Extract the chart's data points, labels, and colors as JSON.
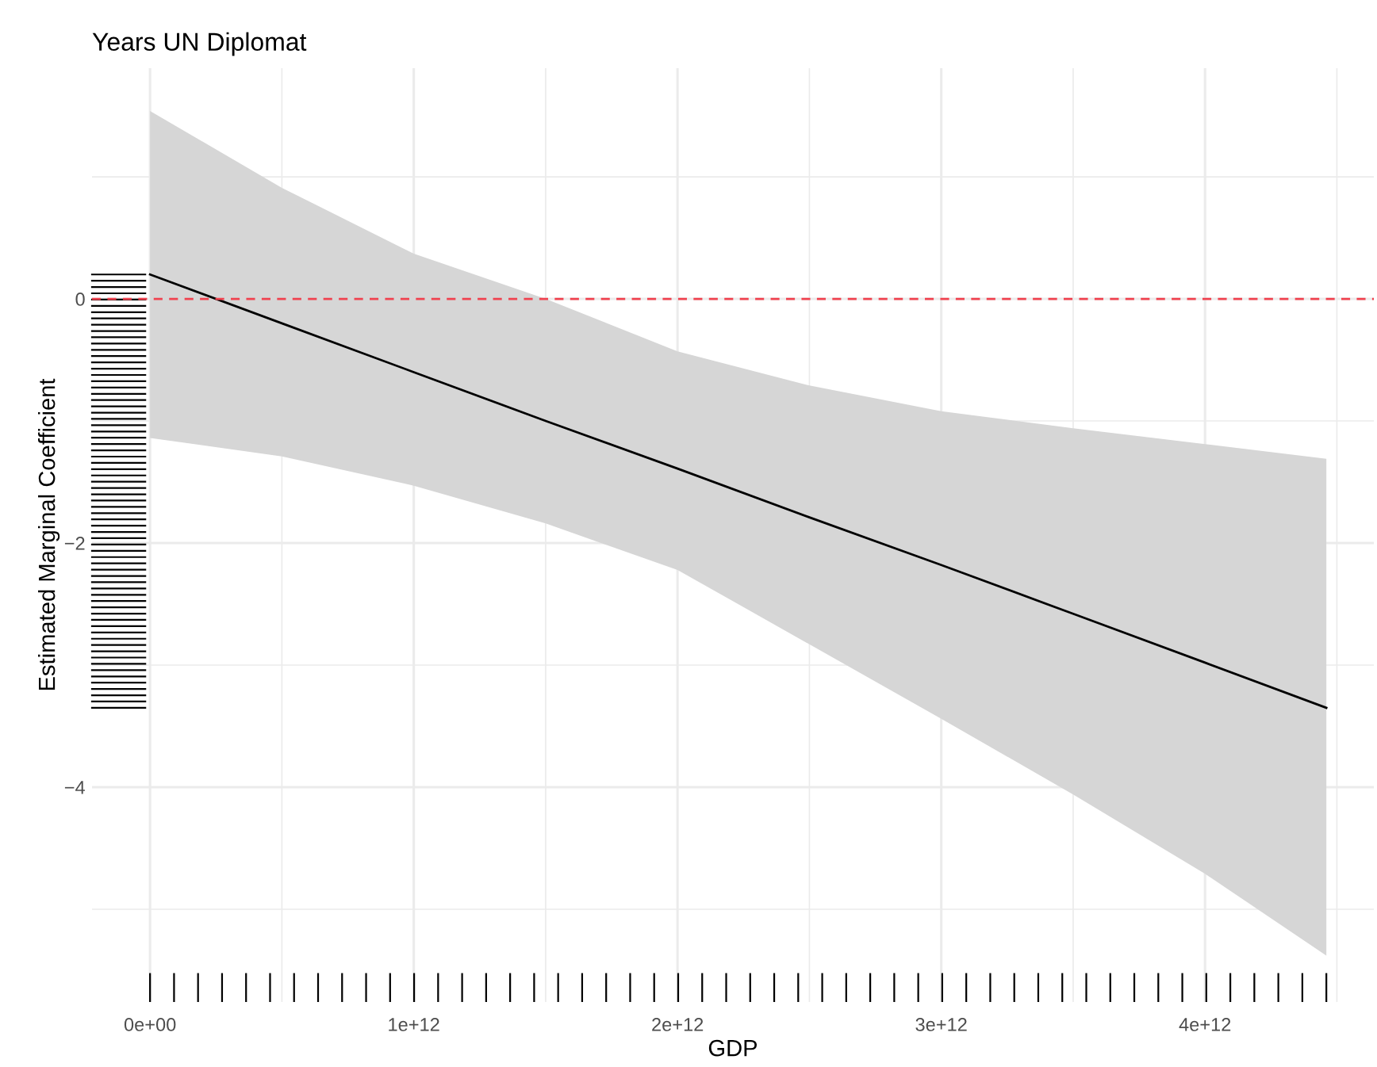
{
  "chart_data": {
    "type": "line",
    "title": "Years UN Diplomat",
    "xlabel": "GDP",
    "ylabel": "Estimated Marginal Coefficient",
    "series": [
      {
        "color": "#000000",
        "x": [
          0,
          500000000000,
          1000000000000,
          1500000000000,
          2000000000000,
          2500000000000,
          3000000000000,
          3500000000000,
          4000000000000,
          4460000000000
        ],
        "values": [
          0.2,
          -0.2,
          -0.6,
          -1.0,
          -1.39,
          -1.79,
          -2.18,
          -2.58,
          -2.98,
          -3.35
        ],
        "lower": [
          -1.14,
          -1.29,
          -1.53,
          -1.84,
          -2.22,
          -2.83,
          -3.44,
          -4.06,
          -4.71,
          -5.38
        ],
        "upper": [
          1.54,
          0.91,
          0.37,
          0.0,
          -0.43,
          -0.71,
          -0.92,
          -1.06,
          -1.19,
          -1.31
        ]
      }
    ],
    "ref_lines": [
      {
        "axis": "y",
        "value": 0,
        "color": "#f0424f",
        "line_style": "dashed"
      }
    ],
    "xlim": [
      -220000000000,
      4640000000000
    ],
    "ylim": [
      -5.76,
      1.89
    ],
    "xticks": [
      {
        "value": 0,
        "label": "0e+00"
      },
      {
        "value": 1000000000000,
        "label": "1e+12"
      },
      {
        "value": 2000000000000,
        "label": "2e+12"
      },
      {
        "value": 3000000000000,
        "label": "3e+12"
      },
      {
        "value": 4000000000000,
        "label": "4e+12"
      }
    ],
    "yticks": [
      {
        "value": -4,
        "label": "−4"
      },
      {
        "value": -2,
        "label": "−2"
      },
      {
        "value": 0,
        "label": "0"
      }
    ],
    "grid": true,
    "legend": false
  }
}
